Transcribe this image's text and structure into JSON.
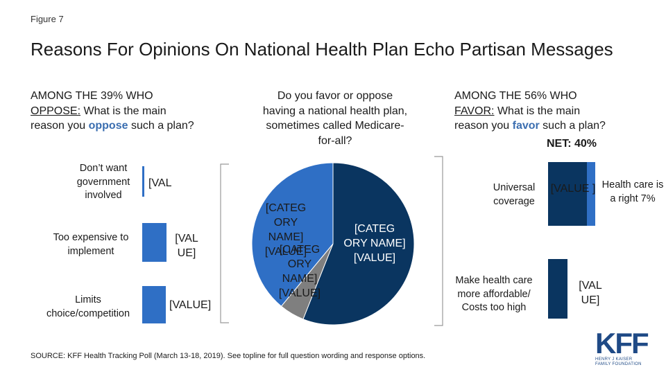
{
  "figure_label": "Figure 7",
  "title": "Reasons For Opinions On National Health Plan Echo Partisan Messages",
  "left_question": {
    "line1": "AMONG THE 39% WHO",
    "oppose_underlined": "OPPOSE:",
    "rest1": " What is the main",
    "rest2_pre": "reason you ",
    "highlight": "oppose",
    "rest2_post": " such a plan?"
  },
  "center_question": "Do you favor or oppose having a national health plan, sometimes called Medicare-for-all?",
  "right_question": {
    "line1": "AMONG THE 56% WHO",
    "favor_underlined": "FAVOR:",
    "rest1": " What is the main",
    "rest2_pre": "reason you ",
    "highlight": "favor",
    "rest2_post": " such a plan?"
  },
  "net_label": "NET: 40%",
  "source": "SOURCE: KFF Health Tracking Poll (March 13-18, 2019). See topline for full question wording and response options.",
  "logo": {
    "main": "KFF",
    "sub1": "HENRY J KAISER",
    "sub2": "FAMILY FOUNDATION"
  },
  "colors": {
    "navy": "#0a3560",
    "blue": "#2f6fc5",
    "gray": "#7f7f7f",
    "bracket": "#999999",
    "highlight": "#3b6eb0"
  },
  "chart_data": [
    {
      "type": "bar",
      "orientation": "horizontal",
      "categories": [
        "Don’t want government involved",
        "Too expensive to implement",
        "Limits choice/competition"
      ],
      "values": [
        null,
        null,
        null
      ],
      "value_labels": [
        "[VAL",
        "[VAL UE]",
        "[VALUE]"
      ],
      "color": "#2f6fc5"
    },
    {
      "type": "pie",
      "slices": [
        {
          "label": "[CATEG ORY NAME] [VALUE]",
          "color": "#0a3560",
          "value": 56
        },
        {
          "label": "[CATEG ORY NAME] [VALUE]",
          "color": "#7f7f7f",
          "value": 5
        },
        {
          "label": "[CATEG ORY NAME] [VALUE]",
          "color": "#2f6fc5",
          "value": 39
        }
      ]
    },
    {
      "type": "bar",
      "orientation": "vertical-stacked",
      "categories": [
        "Universal coverage",
        "Make health care more affordable/ Costs too high"
      ],
      "value_labels": [
        "[VALUE ]",
        "[VAL UE]"
      ],
      "segment_label": "Health care is a right 7%",
      "colors": [
        "#0a3560",
        "#2f6fc5"
      ]
    }
  ]
}
